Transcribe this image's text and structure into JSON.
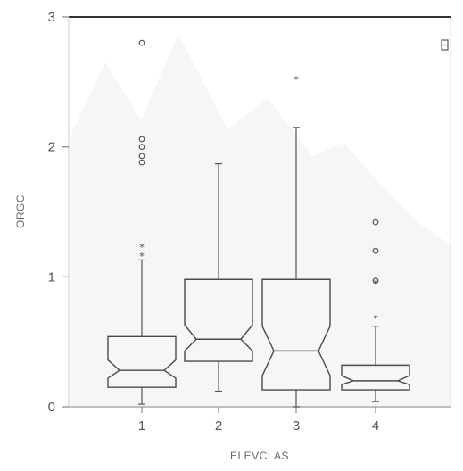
{
  "chart_data": {
    "type": "boxplot",
    "xlabel": "ELEVCLAS",
    "ylabel": "ORGC",
    "ylim": [
      0,
      3
    ],
    "y_ticks": [
      "0",
      "1",
      "2",
      "3"
    ],
    "notched": true,
    "grid": false,
    "categories": [
      "1",
      "2",
      "3",
      "4"
    ],
    "boxes": [
      {
        "category": "1",
        "whisker_low": 0.02,
        "q1": 0.15,
        "notch_low": 0.22,
        "median": 0.28,
        "notch_high": 0.36,
        "q3": 0.54,
        "whisker_high": 1.13,
        "outliers_circle": [
          1.88,
          1.93,
          2.0,
          2.06,
          2.8
        ],
        "outliers_star": [
          1.16,
          1.23
        ]
      },
      {
        "category": "2",
        "whisker_low": 0.12,
        "q1": 0.35,
        "notch_low": 0.43,
        "median": 0.52,
        "notch_high": 0.63,
        "q3": 0.98,
        "whisker_high": 1.87,
        "outliers_circle": [],
        "outliers_star": []
      },
      {
        "category": "3",
        "whisker_low": 0.0,
        "q1": 0.13,
        "notch_low": 0.24,
        "median": 0.43,
        "notch_high": 0.62,
        "q3": 0.98,
        "whisker_high": 2.15,
        "outliers_circle": [],
        "outliers_star": [
          2.52
        ]
      },
      {
        "category": "4",
        "whisker_low": 0.04,
        "q1": 0.13,
        "notch_low": 0.17,
        "median": 0.2,
        "notch_high": 0.24,
        "q3": 0.32,
        "whisker_high": 0.62,
        "outliers_circle": [
          0.97,
          1.2,
          1.42
        ],
        "outliers_star": [
          0.68,
          0.95
        ]
      }
    ]
  }
}
